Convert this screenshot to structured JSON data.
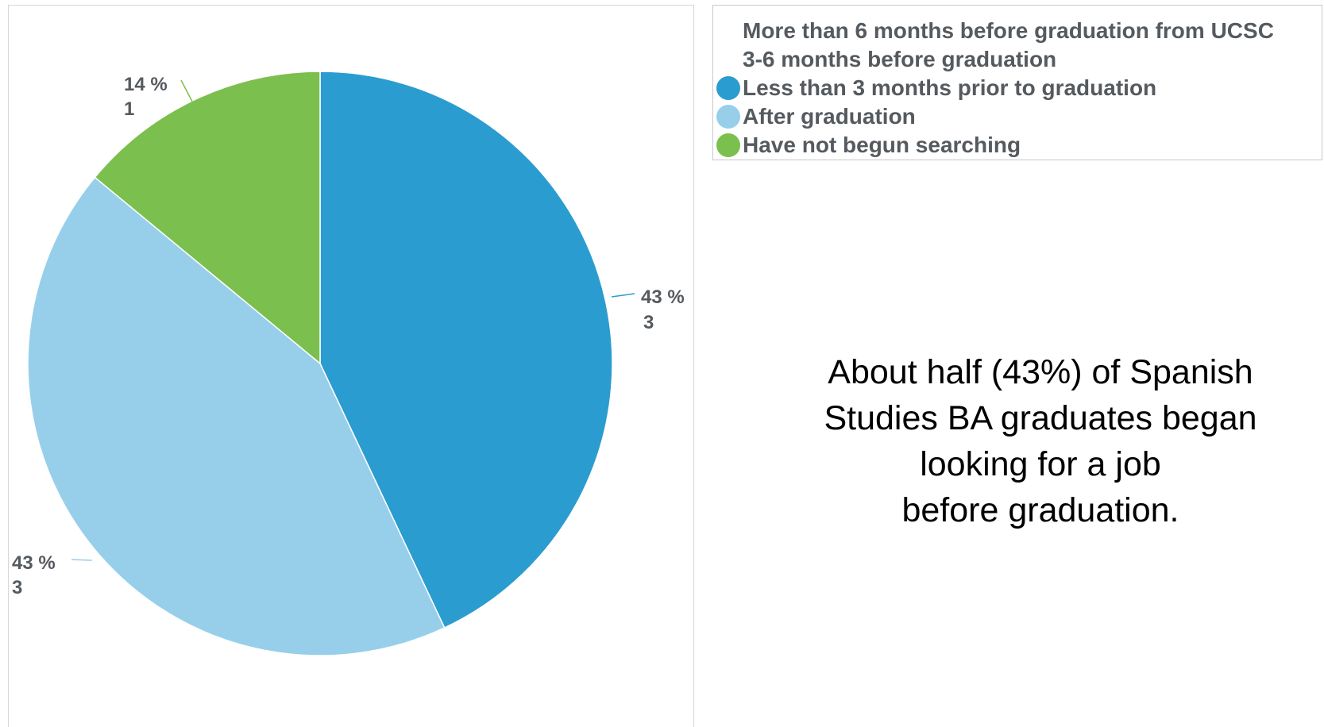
{
  "chart_data": {
    "type": "pie",
    "slices": [
      {
        "name": "More than 6 months before graduation from UCSC",
        "percent": 0,
        "count": 0,
        "percent_label": "",
        "count_label": "",
        "color": ""
      },
      {
        "name": "3-6 months before graduation",
        "percent": 0,
        "count": 0,
        "percent_label": "",
        "count_label": "",
        "color": ""
      },
      {
        "name": "Less than 3 months prior to graduation",
        "percent": 43,
        "count": 3,
        "percent_label": "43 %",
        "count_label": "3",
        "color": "#2b9ccf"
      },
      {
        "name": "After graduation",
        "percent": 43,
        "count": 3,
        "percent_label": "43 %",
        "count_label": "3",
        "color": "#97cfea"
      },
      {
        "name": "Have not begun searching",
        "percent": 14,
        "count": 1,
        "percent_label": "14 %",
        "count_label": "1",
        "color": "#7bbf4e"
      }
    ],
    "legend_placement": "top-right"
  },
  "caption": {
    "lines": [
      "About half (43%) of Spanish",
      "Studies BA graduates began",
      "looking for a job",
      "before graduation."
    ]
  }
}
